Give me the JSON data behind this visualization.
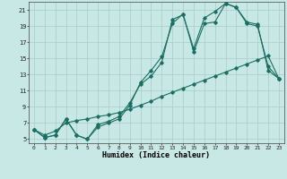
{
  "background_color": "#c8e8e5",
  "grid_color": "#a8ccc9",
  "line_color": "#1a6e62",
  "xlim": [
    -0.5,
    23.5
  ],
  "ylim": [
    4.5,
    22.0
  ],
  "yticks": [
    5,
    7,
    9,
    11,
    13,
    15,
    17,
    19,
    21
  ],
  "xticks": [
    0,
    1,
    2,
    3,
    4,
    5,
    6,
    7,
    8,
    9,
    10,
    11,
    12,
    13,
    14,
    15,
    16,
    17,
    18,
    19,
    20,
    21,
    22,
    23
  ],
  "xlabel": "Humidex (Indice chaleur)",
  "line1_x": [
    0,
    1,
    2,
    3,
    4,
    5,
    6,
    7,
    8,
    9,
    10,
    11,
    12,
    13,
    14,
    15,
    16,
    17,
    18,
    19,
    20,
    21,
    22,
    23
  ],
  "line1_y": [
    6.2,
    5.2,
    5.5,
    7.5,
    5.5,
    5.0,
    6.5,
    7.0,
    7.5,
    9.2,
    12.0,
    13.5,
    15.2,
    19.3,
    20.5,
    15.8,
    19.3,
    19.5,
    21.8,
    21.3,
    19.3,
    19.0,
    14.0,
    12.5
  ],
  "line2_x": [
    0,
    1,
    2,
    3,
    4,
    5,
    6,
    7,
    8,
    9,
    10,
    11,
    12,
    13,
    14,
    15,
    16,
    17,
    18,
    19,
    20,
    21,
    22,
    23
  ],
  "line2_y": [
    6.2,
    5.2,
    5.5,
    7.5,
    5.5,
    5.0,
    6.8,
    7.2,
    7.8,
    9.5,
    11.8,
    12.8,
    14.5,
    19.8,
    20.4,
    16.2,
    20.0,
    20.8,
    21.8,
    21.3,
    19.5,
    19.2,
    13.5,
    12.5
  ],
  "line3_x": [
    0,
    1,
    2,
    3,
    4,
    5,
    6,
    7,
    8,
    9,
    10,
    11,
    12,
    13,
    14,
    15,
    16,
    17,
    18,
    19,
    20,
    21,
    22,
    23
  ],
  "line3_y": [
    6.2,
    5.5,
    6.0,
    7.0,
    7.3,
    7.5,
    7.8,
    8.0,
    8.3,
    8.7,
    9.2,
    9.7,
    10.3,
    10.8,
    11.3,
    11.8,
    12.3,
    12.8,
    13.3,
    13.8,
    14.3,
    14.8,
    15.3,
    12.5
  ]
}
